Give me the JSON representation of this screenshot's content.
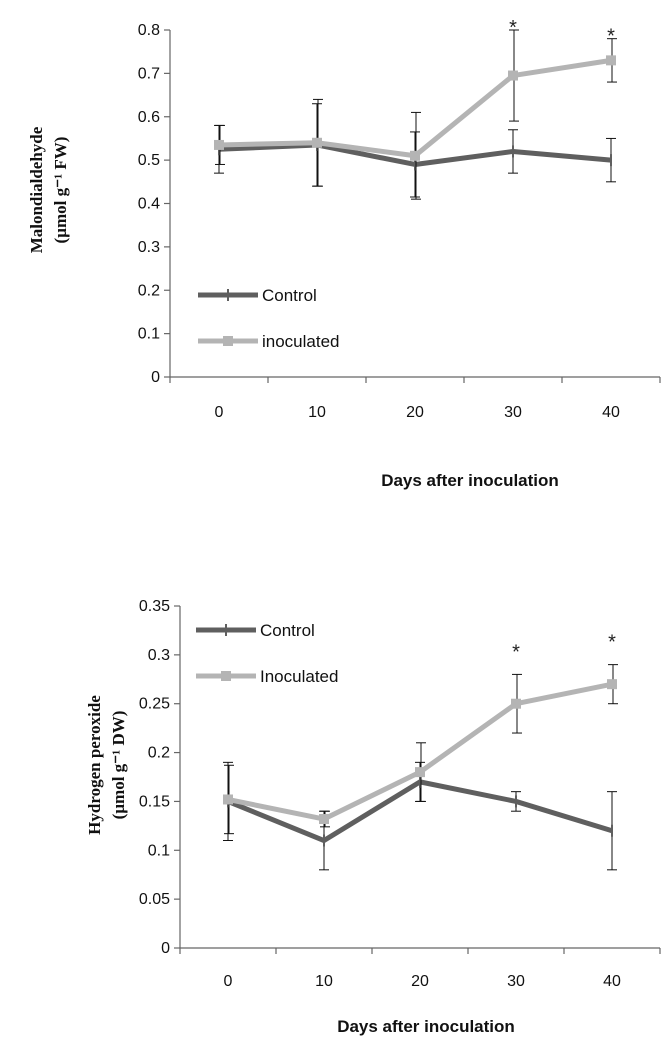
{
  "chart_data": [
    {
      "type": "line",
      "title": "",
      "xlabel": "Days after inoculation",
      "ylabel_line1": "Malondialdehyde",
      "ylabel_line2": "(µmol g⁻¹ FW)",
      "x": [
        0,
        10,
        20,
        30,
        40
      ],
      "ylim": [
        0,
        0.8
      ],
      "yticks": [
        "0",
        "0.1",
        "0.2",
        "0.3",
        "0.4",
        "0.5",
        "0.6",
        "0.7",
        "0.8"
      ],
      "ytick_values": [
        0,
        0.1,
        0.2,
        0.3,
        0.4,
        0.5,
        0.6,
        0.7,
        0.8
      ],
      "xticks": [
        "0",
        "10",
        "20",
        "30",
        "40"
      ],
      "legend_position": "bottom-left",
      "grid": false,
      "series": [
        {
          "name": "Control",
          "color": "#5f5f5f",
          "values": [
            0.525,
            0.535,
            0.49,
            0.52,
            0.5
          ],
          "errors": [
            0.055,
            0.095,
            0.075,
            0.05,
            0.05
          ]
        },
        {
          "name": "inoculated",
          "color": "#b4b4b4",
          "values": [
            0.535,
            0.54,
            0.51,
            0.695,
            0.73
          ],
          "errors": [
            0.045,
            0.1,
            0.1,
            0.105,
            0.05
          ]
        }
      ],
      "significance": [
        {
          "x": 30,
          "label": "*"
        },
        {
          "x": 40,
          "label": "*"
        }
      ]
    },
    {
      "type": "line",
      "title": "",
      "xlabel": "Days after inoculation",
      "ylabel_line1": "Hydrogen peroxide",
      "ylabel_line2": "(µmol g⁻¹ DW)",
      "x": [
        0,
        10,
        20,
        30,
        40
      ],
      "ylim": [
        0,
        0.35
      ],
      "yticks": [
        "0",
        "0.05",
        "0.1",
        "0.15",
        "0.2",
        "0.25",
        "0.3",
        "0.35"
      ],
      "ytick_values": [
        0,
        0.05,
        0.1,
        0.15,
        0.2,
        0.25,
        0.3,
        0.35
      ],
      "xticks": [
        "0",
        "10",
        "20",
        "30",
        "40"
      ],
      "legend_position": "top-left",
      "grid": false,
      "series": [
        {
          "name": "Control",
          "color": "#5f5f5f",
          "values": [
            0.15,
            0.11,
            0.17,
            0.15,
            0.12
          ],
          "errors": [
            0.04,
            0.03,
            0.02,
            0.01,
            0.04
          ]
        },
        {
          "name": "Inoculated",
          "color": "#b4b4b4",
          "values": [
            0.152,
            0.132,
            0.18,
            0.25,
            0.27
          ],
          "errors": [
            0.035,
            0.008,
            0.03,
            0.03,
            0.02
          ]
        }
      ],
      "significance": [
        {
          "x": 30,
          "label": "*"
        },
        {
          "x": 40,
          "label": "*"
        }
      ]
    }
  ]
}
